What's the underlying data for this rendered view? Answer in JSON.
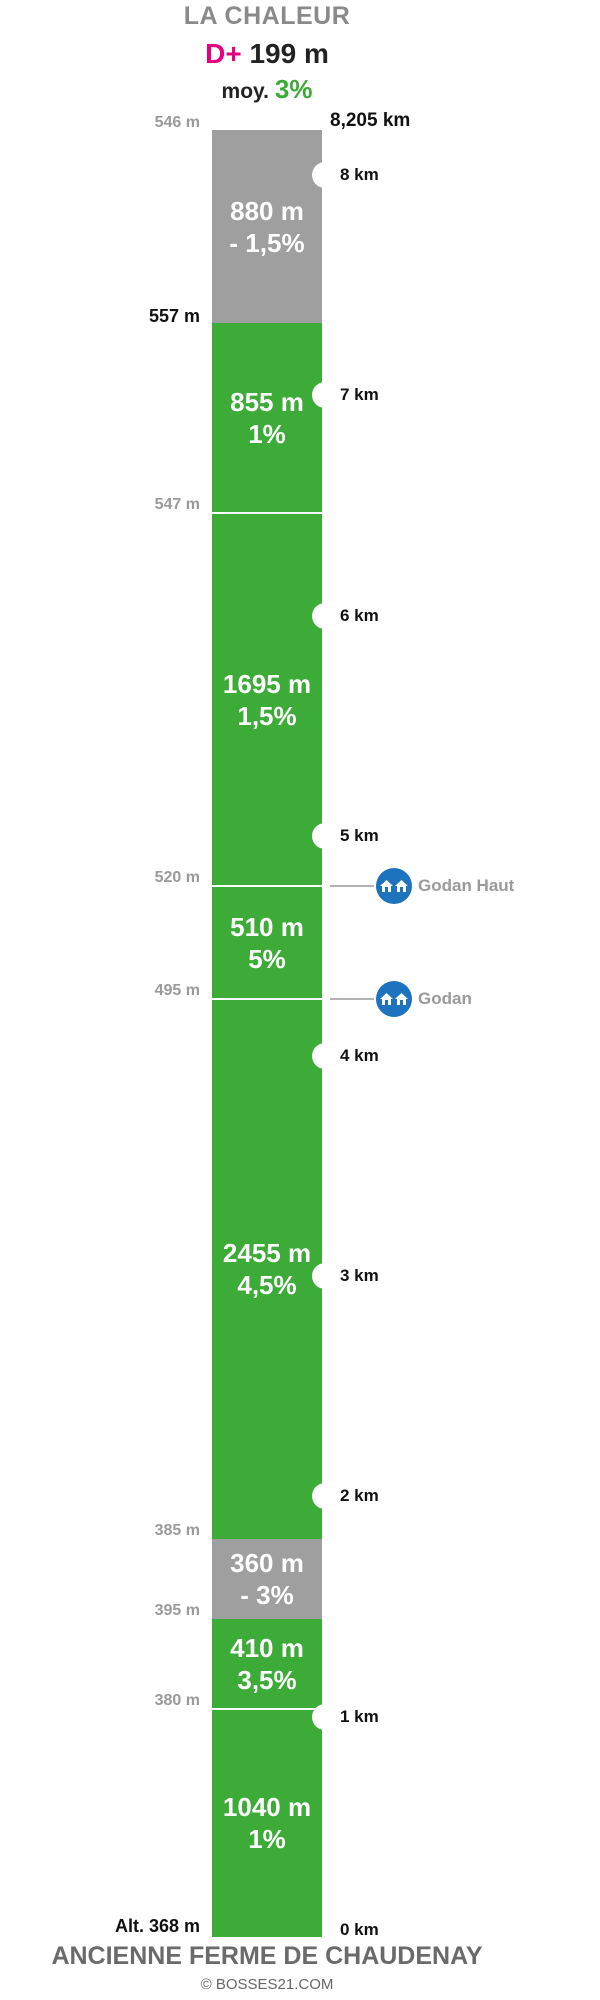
{
  "header": {
    "title": "LA CHALEUR",
    "dplus_prefix": "D+",
    "dplus_value": "199 m",
    "avg_prefix": "moy.",
    "avg_value": "3%"
  },
  "top_right_distance": "8,205 km",
  "segments": [
    {
      "length": "880 m",
      "grade": "- 1,5%",
      "color": "grey"
    },
    {
      "length": "855 m",
      "grade": "1%",
      "color": "green"
    },
    {
      "length": "1695 m",
      "grade": "1,5%",
      "color": "green"
    },
    {
      "length": "510 m",
      "grade": "5%",
      "color": "green"
    },
    {
      "length": "2455 m",
      "grade": "4,5%",
      "color": "green"
    },
    {
      "length": "360 m",
      "grade": "- 3%",
      "color": "grey"
    },
    {
      "length": "410 m",
      "grade": "3,5%",
      "color": "green"
    },
    {
      "length": "1040 m",
      "grade": "1%",
      "color": "green"
    }
  ],
  "altitudes": [
    "546 m",
    "557 m",
    "547 m",
    "520 m",
    "495 m",
    "385 m",
    "395 m",
    "380 m",
    "Alt. 368 m"
  ],
  "km_markers": [
    "8 km",
    "7 km",
    "6 km",
    "5 km",
    "4 km",
    "3 km",
    "2 km",
    "1 km",
    "0 km"
  ],
  "pois": [
    {
      "name": "Godan Haut",
      "icon": "houses-icon"
    },
    {
      "name": "Godan",
      "icon": "houses-icon"
    }
  ],
  "footer": {
    "destination": "ANCIENNE FERME DE CHAUDENAY",
    "credit": "© BOSSES21.COM"
  },
  "colors": {
    "green": "#3dab37",
    "grey": "#a09f9f",
    "pink": "#e6007e",
    "poi_blue": "#1e73be"
  }
}
